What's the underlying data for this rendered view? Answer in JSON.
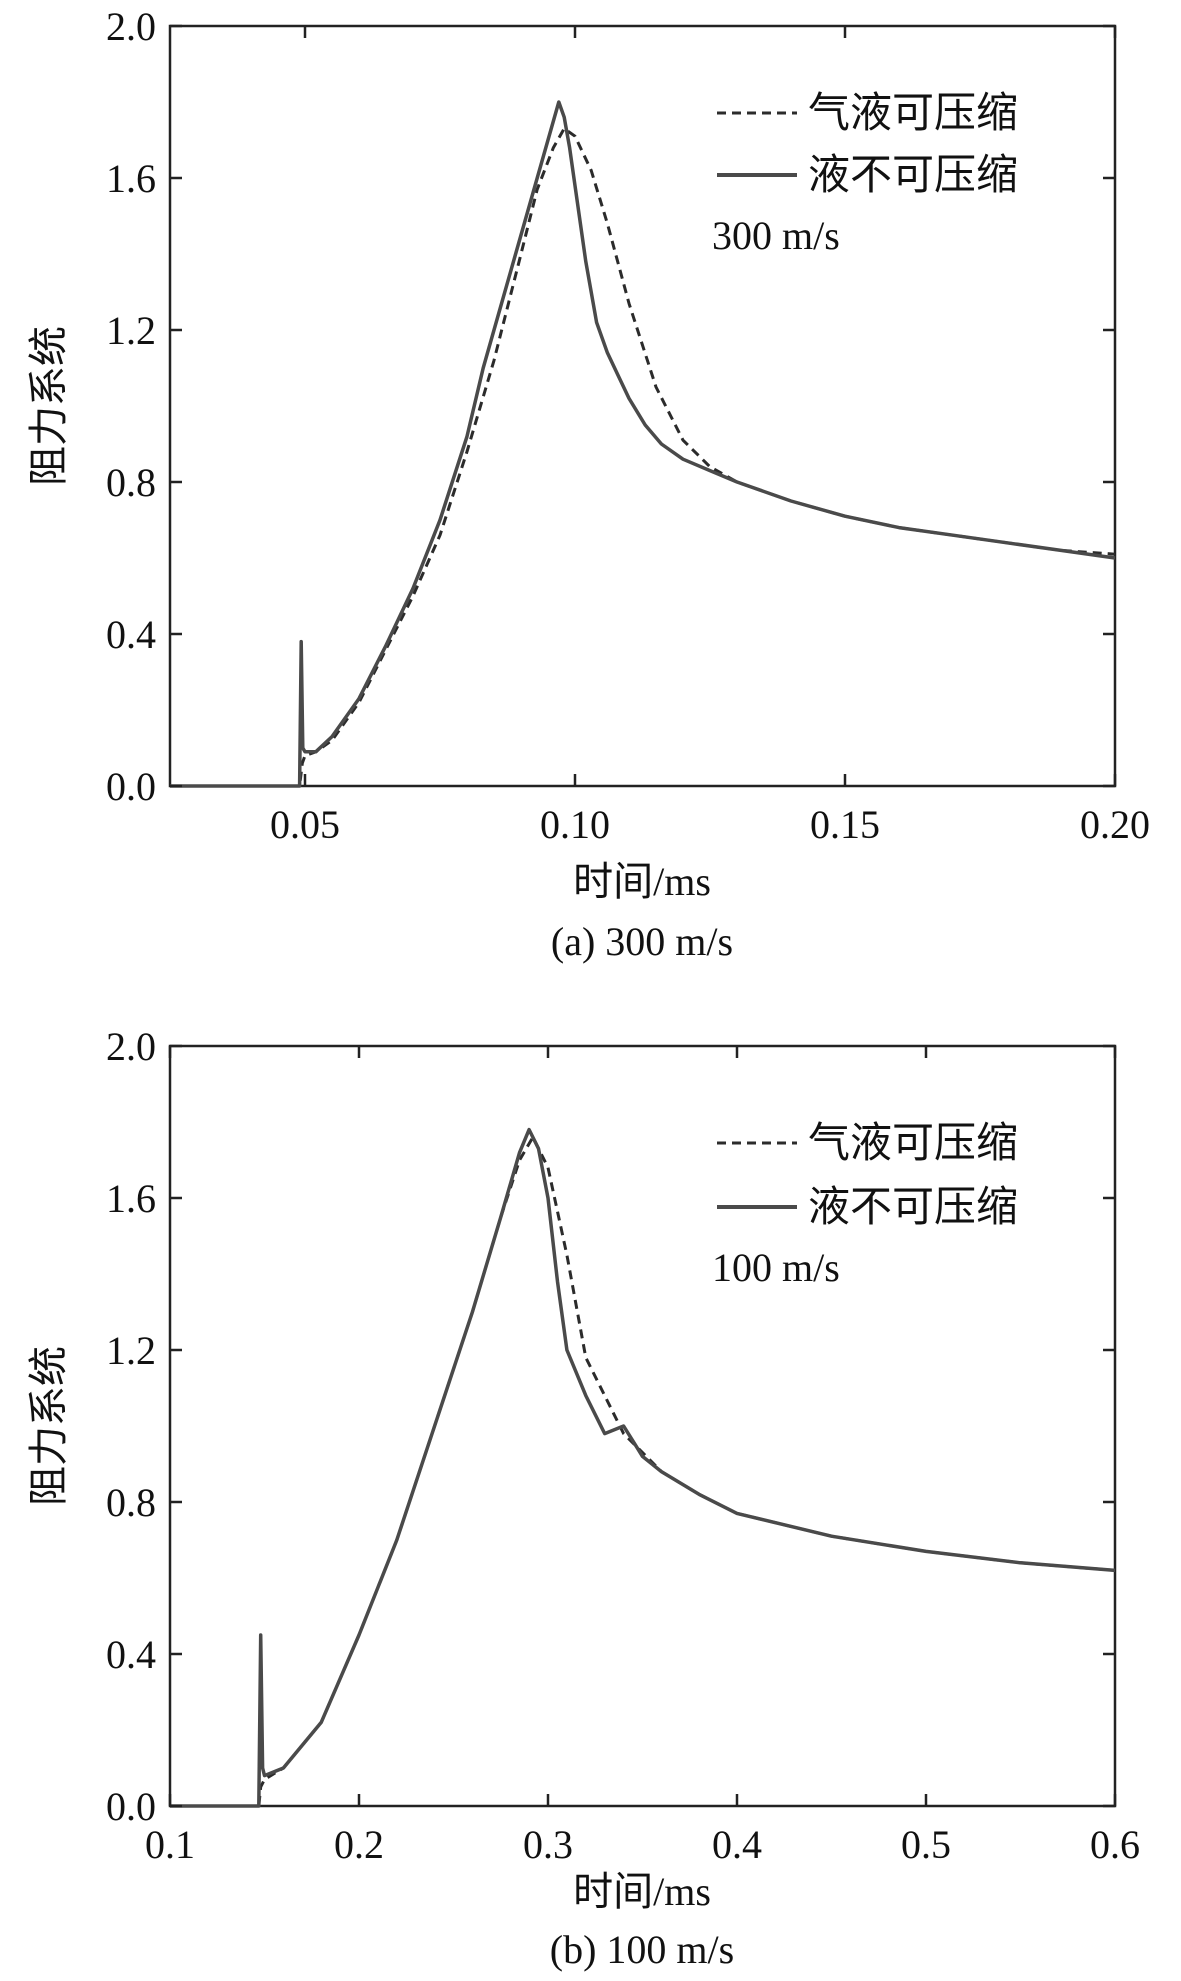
{
  "chart_data": [
    {
      "type": "line",
      "id": "a",
      "caption": "(a) 300 m/s",
      "annotation": "300 m/s",
      "xlabel": "时间/ms",
      "ylabel": "阻力系统",
      "xlim": [
        0.025,
        0.2
      ],
      "ylim": [
        0.0,
        2.0
      ],
      "xticks": [
        0.05,
        0.1,
        0.15,
        0.2
      ],
      "xtick_labels": [
        "0.05",
        "0.10",
        "0.15",
        "0.20"
      ],
      "yticks": [
        0.0,
        0.4,
        0.8,
        1.2,
        1.6,
        2.0
      ],
      "ytick_labels": [
        "0.0",
        "0.4",
        "0.8",
        "1.2",
        "1.6",
        "2.0"
      ],
      "legend_position": "top-right",
      "series": [
        {
          "name": "气液可压缩",
          "style": "dashed",
          "color": "#2b2b2b",
          "x": [
            0.025,
            0.049,
            0.0495,
            0.05,
            0.052,
            0.055,
            0.06,
            0.065,
            0.07,
            0.075,
            0.08,
            0.085,
            0.09,
            0.093,
            0.096,
            0.098,
            0.1,
            0.103,
            0.106,
            0.11,
            0.115,
            0.12,
            0.125,
            0.13,
            0.14,
            0.15,
            0.16,
            0.17,
            0.18,
            0.19,
            0.2
          ],
          "y": [
            0.0,
            0.0,
            0.06,
            0.08,
            0.09,
            0.12,
            0.22,
            0.36,
            0.5,
            0.66,
            0.88,
            1.12,
            1.4,
            1.57,
            1.68,
            1.73,
            1.71,
            1.62,
            1.48,
            1.27,
            1.05,
            0.91,
            0.84,
            0.8,
            0.75,
            0.71,
            0.68,
            0.66,
            0.64,
            0.62,
            0.61
          ]
        },
        {
          "name": "液不可压缩",
          "style": "solid",
          "color": "#4a4a4a",
          "x": [
            0.025,
            0.049,
            0.0493,
            0.0496,
            0.05,
            0.052,
            0.055,
            0.06,
            0.065,
            0.07,
            0.075,
            0.08,
            0.083,
            0.086,
            0.089,
            0.092,
            0.095,
            0.097,
            0.098,
            0.099,
            0.1,
            0.102,
            0.104,
            0.106,
            0.108,
            0.11,
            0.113,
            0.116,
            0.12,
            0.125,
            0.13,
            0.14,
            0.15,
            0.16,
            0.17,
            0.18,
            0.19,
            0.2
          ],
          "y": [
            0.0,
            0.0,
            0.38,
            0.1,
            0.09,
            0.09,
            0.13,
            0.23,
            0.37,
            0.52,
            0.7,
            0.92,
            1.1,
            1.25,
            1.4,
            1.55,
            1.7,
            1.8,
            1.76,
            1.68,
            1.58,
            1.38,
            1.22,
            1.14,
            1.08,
            1.02,
            0.95,
            0.9,
            0.86,
            0.83,
            0.8,
            0.75,
            0.71,
            0.68,
            0.66,
            0.64,
            0.62,
            0.6
          ]
        }
      ]
    },
    {
      "type": "line",
      "id": "b",
      "caption": "(b) 100 m/s",
      "annotation": "100 m/s",
      "xlabel": "时间/ms",
      "ylabel": "阻力系统",
      "xlim": [
        0.1,
        0.6
      ],
      "ylim": [
        0.0,
        2.0
      ],
      "xticks": [
        0.1,
        0.2,
        0.3,
        0.4,
        0.5,
        0.6
      ],
      "xtick_labels": [
        "0.1",
        "0.2",
        "0.3",
        "0.4",
        "0.5",
        "0.6"
      ],
      "yticks": [
        0.0,
        0.4,
        0.8,
        1.2,
        1.6,
        2.0
      ],
      "ytick_labels": [
        "0.0",
        "0.4",
        "0.8",
        "1.2",
        "1.6",
        "2.0"
      ],
      "legend_position": "top-right",
      "series": [
        {
          "name": "气液可压缩",
          "style": "dashed",
          "color": "#2b2b2b",
          "x": [
            0.1,
            0.147,
            0.148,
            0.15,
            0.16,
            0.18,
            0.2,
            0.22,
            0.24,
            0.26,
            0.275,
            0.285,
            0.292,
            0.3,
            0.31,
            0.32,
            0.34,
            0.36,
            0.38,
            0.4,
            0.45,
            0.5,
            0.55,
            0.6
          ],
          "y": [
            0.0,
            0.0,
            0.05,
            0.07,
            0.1,
            0.22,
            0.45,
            0.7,
            1.0,
            1.3,
            1.55,
            1.7,
            1.76,
            1.68,
            1.45,
            1.18,
            0.98,
            0.88,
            0.82,
            0.77,
            0.71,
            0.67,
            0.64,
            0.62
          ]
        },
        {
          "name": "液不可压缩",
          "style": "solid",
          "color": "#4a4a4a",
          "x": [
            0.1,
            0.147,
            0.148,
            0.149,
            0.15,
            0.16,
            0.18,
            0.2,
            0.22,
            0.24,
            0.26,
            0.275,
            0.285,
            0.29,
            0.295,
            0.3,
            0.305,
            0.31,
            0.32,
            0.33,
            0.34,
            0.35,
            0.36,
            0.38,
            0.4,
            0.45,
            0.5,
            0.55,
            0.6
          ],
          "y": [
            0.0,
            0.0,
            0.45,
            0.1,
            0.08,
            0.1,
            0.22,
            0.45,
            0.7,
            1.0,
            1.3,
            1.55,
            1.72,
            1.78,
            1.73,
            1.6,
            1.38,
            1.2,
            1.08,
            0.98,
            1.0,
            0.92,
            0.88,
            0.82,
            0.77,
            0.71,
            0.67,
            0.64,
            0.62
          ]
        }
      ]
    }
  ]
}
